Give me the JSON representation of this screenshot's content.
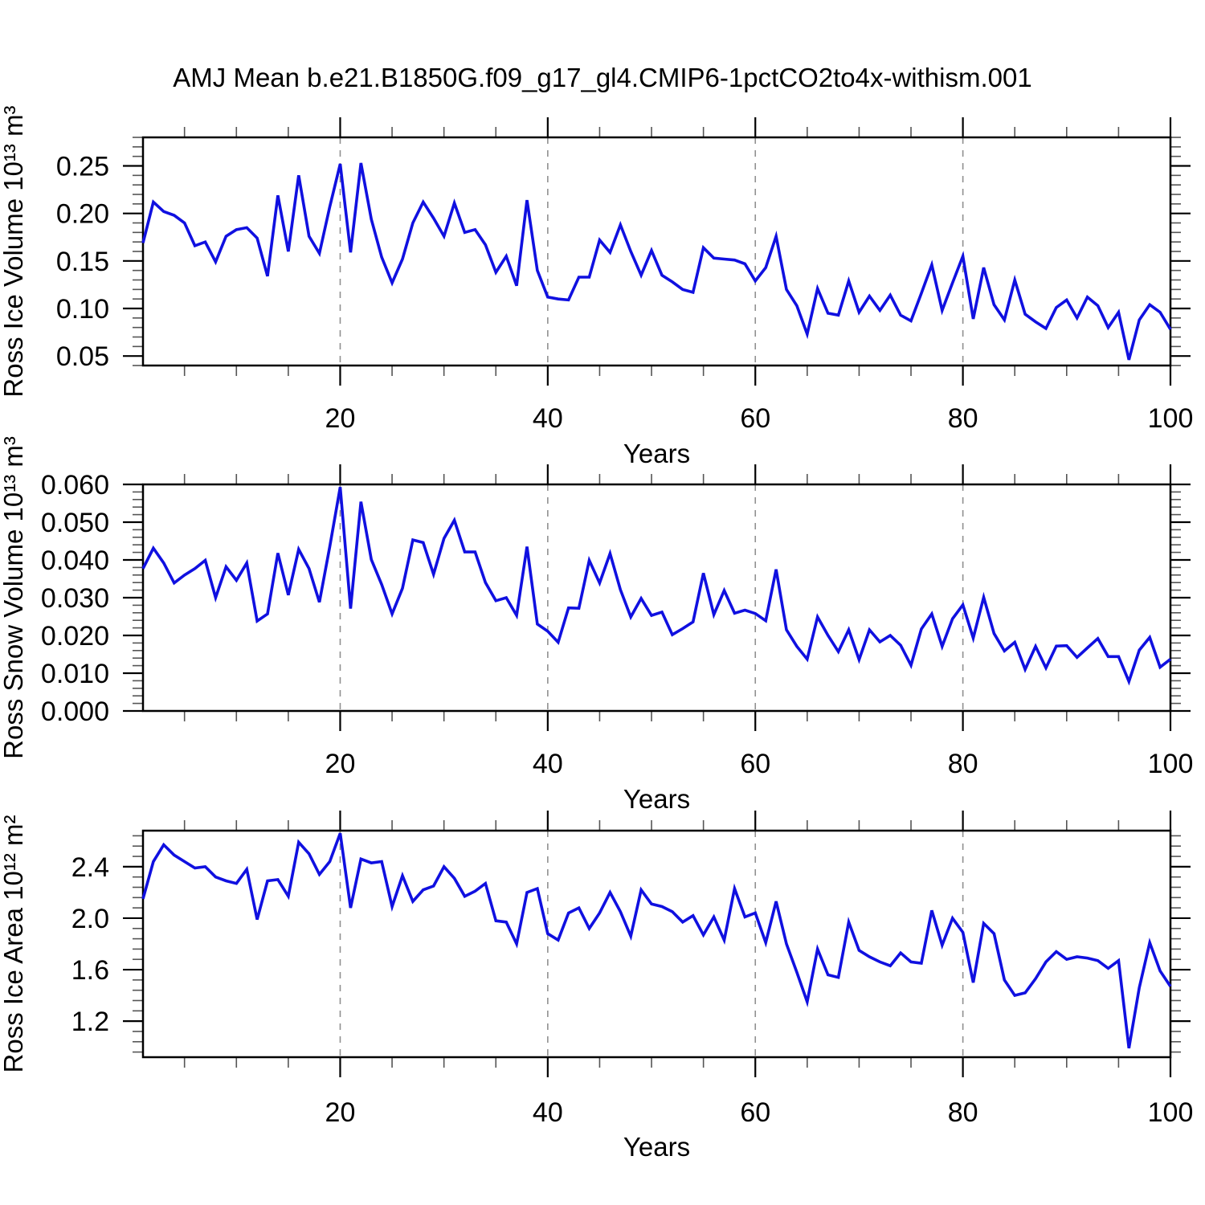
{
  "title": "AMJ Mean b.e21.B1850G.f09_g17_gl4.CMIP6-1pctCO2to4x-withism.001",
  "line_color": "#1010e0",
  "grid_color": "#909090",
  "axis_color": "#000000",
  "chart_data": [
    {
      "type": "line",
      "title": "",
      "xlabel": "Years",
      "ylabel": "Ross Ice Volume 10¹³ m³",
      "xlim": [
        1,
        100
      ],
      "ylim": [
        0.04,
        0.28
      ],
      "xticks": [
        20,
        40,
        60,
        80,
        100
      ],
      "xtick_labels": [
        "20",
        "40",
        "60",
        "80",
        "100"
      ],
      "x_minor_step": 5,
      "yticks": [
        0.05,
        0.1,
        0.15,
        0.2,
        0.25
      ],
      "ytick_labels": [
        "0.05",
        "0.10",
        "0.15",
        "0.20",
        "0.25"
      ],
      "y_minor_step": 0.01,
      "grid_x": [
        20,
        40,
        60,
        80
      ],
      "grid_style": "dashed",
      "legend": "none",
      "x_start": 1,
      "values": [
        0.169,
        0.212,
        0.202,
        0.198,
        0.19,
        0.166,
        0.17,
        0.149,
        0.176,
        0.183,
        0.185,
        0.174,
        0.134,
        0.219,
        0.16,
        0.24,
        0.176,
        0.158,
        0.207,
        0.252,
        0.159,
        0.253,
        0.194,
        0.154,
        0.127,
        0.152,
        0.19,
        0.212,
        0.195,
        0.176,
        0.211,
        0.18,
        0.183,
        0.167,
        0.138,
        0.155,
        0.124,
        0.214,
        0.14,
        0.112,
        0.11,
        0.109,
        0.133,
        0.133,
        0.172,
        0.159,
        0.188,
        0.16,
        0.135,
        0.161,
        0.135,
        0.128,
        0.12,
        0.117,
        0.164,
        0.153,
        0.152,
        0.151,
        0.147,
        0.129,
        0.143,
        0.176,
        0.12,
        0.103,
        0.073,
        0.121,
        0.095,
        0.093,
        0.129,
        0.096,
        0.113,
        0.098,
        0.114,
        0.093,
        0.087,
        0.116,
        0.146,
        0.098,
        0.127,
        0.155,
        0.089,
        0.143,
        0.104,
        0.088,
        0.13,
        0.094,
        0.086,
        0.079,
        0.101,
        0.109,
        0.09,
        0.112,
        0.103,
        0.08,
        0.096,
        0.046,
        0.088,
        0.104,
        0.096,
        0.078
      ]
    },
    {
      "type": "line",
      "title": "",
      "xlabel": "Years",
      "ylabel": "Ross Snow Volume 10¹³ m³",
      "xlim": [
        1,
        100
      ],
      "ylim": [
        0.0,
        0.06
      ],
      "xticks": [
        20,
        40,
        60,
        80,
        100
      ],
      "xtick_labels": [
        "20",
        "40",
        "60",
        "80",
        "100"
      ],
      "x_minor_step": 5,
      "yticks": [
        0.0,
        0.01,
        0.02,
        0.03,
        0.04,
        0.05,
        0.06
      ],
      "ytick_labels": [
        "0.000",
        "0.010",
        "0.020",
        "0.030",
        "0.040",
        "0.050",
        "0.060"
      ],
      "y_minor_step": 0.002,
      "grid_x": [
        20,
        40,
        60,
        80
      ],
      "grid_style": "dashed",
      "legend": "none",
      "x_start": 1,
      "values": [
        0.0377,
        0.0431,
        0.0392,
        0.0339,
        0.036,
        0.0377,
        0.0399,
        0.03,
        0.0382,
        0.0346,
        0.0392,
        0.0238,
        0.0257,
        0.0418,
        0.0307,
        0.0428,
        0.0377,
        0.0288,
        0.0435,
        0.0593,
        0.0271,
        0.0554,
        0.0401,
        0.0335,
        0.0257,
        0.0325,
        0.0453,
        0.0446,
        0.0362,
        0.0457,
        0.0505,
        0.0421,
        0.0421,
        0.034,
        0.0292,
        0.03,
        0.0253,
        0.0435,
        0.023,
        0.0211,
        0.0182,
        0.0273,
        0.0272,
        0.0399,
        0.0339,
        0.0417,
        0.0321,
        0.0249,
        0.0298,
        0.0253,
        0.0262,
        0.0202,
        0.0218,
        0.0236,
        0.0365,
        0.0255,
        0.0319,
        0.0259,
        0.0267,
        0.0258,
        0.0239,
        0.0375,
        0.0215,
        0.0171,
        0.0137,
        0.0249,
        0.02,
        0.0157,
        0.0215,
        0.0136,
        0.0215,
        0.0183,
        0.02,
        0.0174,
        0.0121,
        0.0217,
        0.0257,
        0.0171,
        0.0244,
        0.0281,
        0.0193,
        0.0301,
        0.0205,
        0.0159,
        0.0182,
        0.011,
        0.0171,
        0.0114,
        0.0172,
        0.0173,
        0.0142,
        0.0167,
        0.0192,
        0.0144,
        0.0144,
        0.0078,
        0.0161,
        0.0195,
        0.0116,
        0.0137
      ]
    },
    {
      "type": "line",
      "title": "",
      "xlabel": "Years",
      "ylabel": "Ross Ice Area 10¹² m²",
      "xlim": [
        1,
        100
      ],
      "ylim": [
        0.92,
        2.68
      ],
      "xticks": [
        20,
        40,
        60,
        80,
        100
      ],
      "xtick_labels": [
        "20",
        "40",
        "60",
        "80",
        "100"
      ],
      "x_minor_step": 5,
      "yticks": [
        1.2,
        1.6,
        2.0,
        2.4
      ],
      "ytick_labels": [
        "1.2",
        "1.6",
        "2.0",
        "2.4"
      ],
      "y_minor_step": 0.08,
      "grid_x": [
        20,
        40,
        60,
        80
      ],
      "grid_style": "dashed",
      "legend": "none",
      "x_start": 1,
      "values": [
        2.15,
        2.44,
        2.57,
        2.49,
        2.44,
        2.39,
        2.4,
        2.32,
        2.29,
        2.27,
        2.38,
        1.99,
        2.29,
        2.3,
        2.17,
        2.59,
        2.5,
        2.34,
        2.44,
        2.66,
        2.08,
        2.46,
        2.43,
        2.44,
        2.09,
        2.33,
        2.13,
        2.22,
        2.25,
        2.4,
        2.31,
        2.17,
        2.21,
        2.27,
        1.98,
        1.97,
        1.8,
        2.2,
        2.23,
        1.88,
        1.83,
        2.04,
        2.08,
        1.92,
        2.04,
        2.2,
        2.05,
        1.86,
        2.22,
        2.11,
        2.09,
        2.05,
        1.97,
        2.02,
        1.87,
        2.01,
        1.83,
        2.23,
        2.01,
        2.04,
        1.81,
        2.13,
        1.8,
        1.58,
        1.35,
        1.76,
        1.56,
        1.54,
        1.97,
        1.75,
        1.7,
        1.66,
        1.63,
        1.73,
        1.66,
        1.65,
        2.06,
        1.79,
        2.0,
        1.89,
        1.5,
        1.96,
        1.88,
        1.52,
        1.4,
        1.42,
        1.53,
        1.66,
        1.74,
        1.68,
        1.7,
        1.69,
        1.67,
        1.61,
        1.67,
        0.99,
        1.46,
        1.81,
        1.59,
        1.47
      ]
    }
  ]
}
